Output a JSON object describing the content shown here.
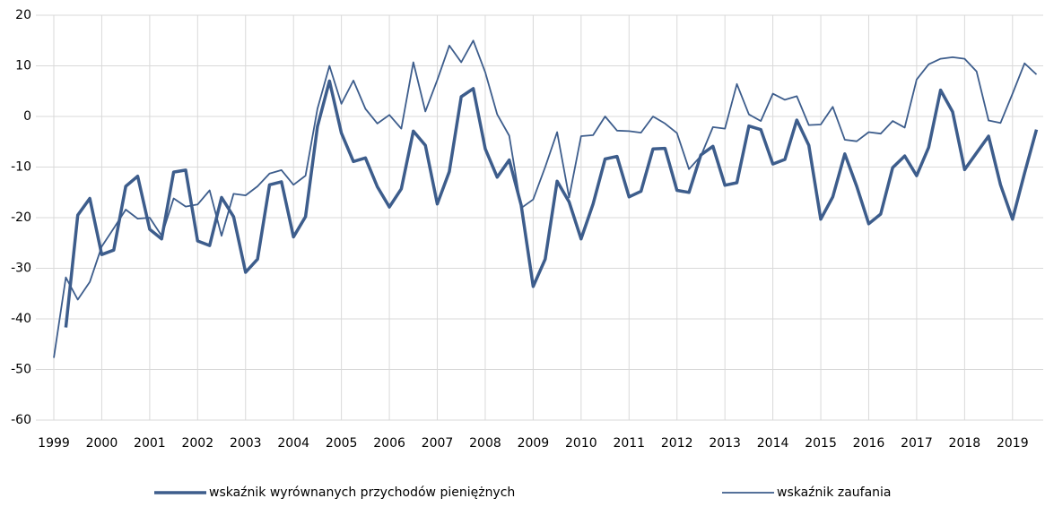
{
  "chart_data": {
    "type": "line",
    "categories": [
      "1999",
      null,
      null,
      null,
      "2000",
      null,
      null,
      null,
      "2001",
      null,
      null,
      null,
      "2002",
      null,
      null,
      null,
      "2003",
      null,
      null,
      null,
      "2004",
      null,
      null,
      null,
      "2005",
      null,
      null,
      null,
      "2006",
      null,
      null,
      null,
      "2007",
      null,
      null,
      null,
      "2008",
      null,
      null,
      null,
      "2009",
      null,
      null,
      null,
      "2010",
      null,
      null,
      null,
      "2011",
      null,
      null,
      null,
      "2012",
      null,
      null,
      null,
      "2013",
      null,
      null,
      null,
      "2014",
      null,
      null,
      null,
      "2015",
      null,
      null,
      null,
      "2016",
      null,
      null,
      null,
      "2017",
      null,
      null,
      null,
      "2018",
      null,
      null,
      null,
      "2019",
      null,
      null
    ],
    "series": [
      {
        "name": "wskaźnik wyrównanych przychodów pieniężnych",
        "color": "#3d5d8c",
        "width": 3.5,
        "values": [
          null,
          -41.7,
          -19.5,
          -16.2,
          -27.3,
          -26.4,
          -13.8,
          -11.8,
          -22.3,
          -24.2,
          -11.0,
          -10.6,
          -24.6,
          -25.5,
          -16.0,
          -19.8,
          -30.8,
          -28.2,
          -13.5,
          -12.9,
          -23.8,
          -19.8,
          -2.0,
          7.0,
          -3.3,
          -8.9,
          -8.2,
          -13.9,
          -17.9,
          -14.3,
          -2.9,
          -5.7,
          -17.3,
          -10.9,
          3.9,
          5.5,
          -6.4,
          -12.0,
          -8.6,
          -17.5,
          -33.6,
          -28.2,
          -12.8,
          -16.9,
          -24.2,
          -17.3,
          -8.4,
          -7.9,
          -15.9,
          -14.8,
          -6.4,
          -6.3,
          -14.6,
          -15.0,
          -7.6,
          -5.9,
          -13.6,
          -13.1,
          -1.9,
          -2.6,
          -9.4,
          -8.5,
          -0.7,
          -5.7,
          -20.3,
          -15.9,
          -7.4,
          -13.8,
          -21.2,
          -19.3,
          -10.1,
          -7.8,
          -11.7,
          -6.1,
          5.2,
          0.9,
          -10.5,
          -7.2,
          -3.9,
          -13.5,
          -20.3,
          -11.2,
          -2.6
        ]
      },
      {
        "name": "wskaźnik zaufania",
        "color": "#3d5d8c",
        "width": 1.8,
        "values": [
          -47.7,
          -31.8,
          -36.2,
          -32.7,
          -25.7,
          -22.1,
          -18.4,
          -20.2,
          -20.0,
          -23.6,
          -16.2,
          -17.8,
          -17.4,
          -14.6,
          -23.6,
          -15.3,
          -15.6,
          -13.8,
          -11.3,
          -10.6,
          -13.5,
          -11.7,
          1.5,
          10.0,
          2.5,
          7.1,
          1.5,
          -1.4,
          0.3,
          -2.4,
          10.7,
          1.0,
          7.2,
          14.0,
          10.7,
          15.0,
          8.7,
          0.4,
          -3.8,
          -18.1,
          -16.4,
          -10.0,
          -3.1,
          -16.0,
          -3.9,
          -3.7,
          0.0,
          -2.8,
          -2.9,
          -3.2,
          0.0,
          -1.4,
          -3.3,
          -10.4,
          -7.8,
          -2.1,
          -2.4,
          6.4,
          0.4,
          -0.9,
          4.5,
          3.3,
          4.0,
          -1.7,
          -1.6,
          1.9,
          -4.6,
          -4.9,
          -3.1,
          -3.4,
          -0.9,
          -2.2,
          7.3,
          10.3,
          11.4,
          11.7,
          11.4,
          8.9,
          -0.8,
          -1.3,
          4.5,
          10.5,
          8.3
        ]
      }
    ],
    "ylim": [
      -60,
      20
    ],
    "yticks": [
      -60,
      -50,
      -40,
      -30,
      -20,
      -10,
      0,
      10,
      20
    ],
    "grid": true,
    "legend": "bottom"
  }
}
